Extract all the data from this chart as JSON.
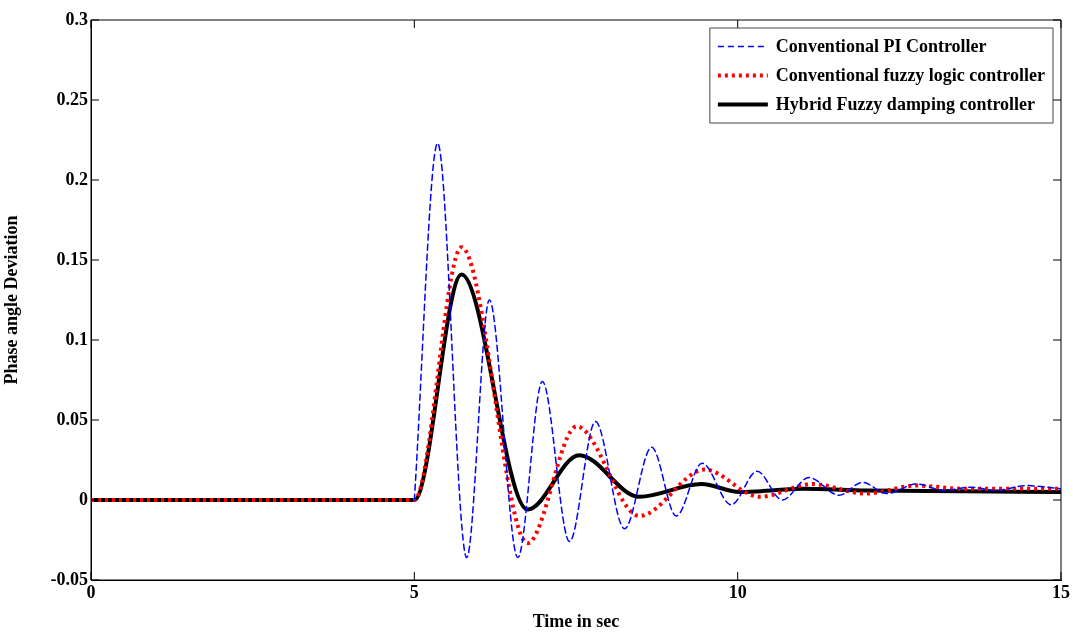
{
  "chart_data": {
    "type": "line",
    "xlabel": "Time in sec",
    "ylabel": "Phase angle Deviation",
    "xlim": [
      0,
      15
    ],
    "xticks": [
      0,
      5,
      10,
      15
    ],
    "ylim": [
      -0.05,
      0.3
    ],
    "yticks": [
      -0.05,
      0,
      0.05,
      0.1,
      0.15,
      0.2,
      0.25,
      0.3
    ],
    "grid": false,
    "legend": "top right",
    "marker": "none",
    "series": [
      {
        "name": "Conventional PI Controller",
        "color": "#0000ff",
        "line_style": "dashed",
        "x": [
          5,
          5.36,
          5.81,
          6.16,
          6.6,
          6.98,
          7.4,
          7.8,
          8.25,
          8.67,
          9.05,
          9.45,
          9.9,
          10.3,
          10.69,
          11.1,
          11.57,
          11.93,
          12.31,
          12.76,
          13.2,
          13.6,
          14.0,
          14.46,
          15
        ],
        "values": [
          0,
          0.223,
          -0.036,
          0.125,
          -0.036,
          0.074,
          -0.026,
          0.049,
          -0.018,
          0.033,
          -0.01,
          0.023,
          -0.003,
          0.018,
          0,
          0.014,
          0.003,
          0.011,
          0.004,
          0.01,
          0.006,
          0.008,
          0.006,
          0.009,
          0.007
        ]
      },
      {
        "name": "Conventional fuzzy logic controller",
        "color": "#ff0000",
        "line_style": "dotted",
        "x": [
          0,
          5,
          5.73,
          6.75,
          7.51,
          8.48,
          9.49,
          10.34,
          11.15,
          11.98,
          12.76,
          13.5,
          15
        ],
        "values": [
          0,
          0,
          0.158,
          -0.027,
          0.046,
          -0.01,
          0.019,
          0.002,
          0.01,
          0.004,
          0.009,
          0.007,
          0.007
        ]
      },
      {
        "name": "Hybrid Fuzzy damping controller",
        "color": "#000000",
        "line_style": "solid",
        "x": [
          0,
          5,
          5.73,
          6.75,
          7.55,
          8.48,
          9.44,
          10.03,
          11,
          12,
          15
        ],
        "values": [
          0,
          0,
          0.141,
          -0.006,
          0.028,
          0.002,
          0.01,
          0.005,
          0.007,
          0.006,
          0.005
        ]
      }
    ]
  }
}
